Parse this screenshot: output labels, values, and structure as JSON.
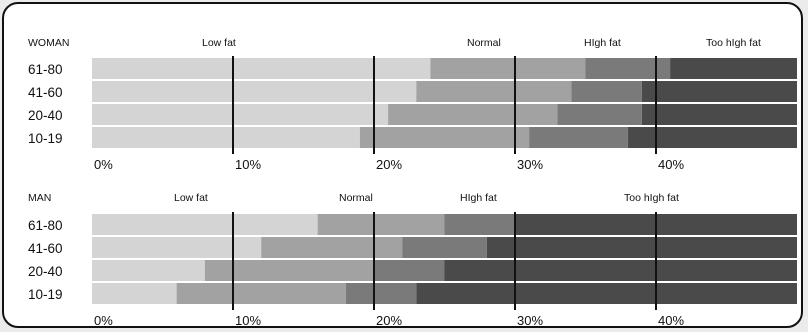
{
  "colors": {
    "background": "#ebebeb",
    "panel": "#ffffff",
    "low_fat": "#d4d4d4",
    "normal": "#a2a2a2",
    "high_fat": "#7a7a7a",
    "too_high_fat": "#4a4a4a",
    "divider": "#111111"
  },
  "chart_data": [
    {
      "type": "bar",
      "orientation": "horizontal",
      "stacked": true,
      "group_label": "WOMAN",
      "categories": [
        "61-80",
        "41-60",
        "20-40",
        "10-19"
      ],
      "zones": [
        "Low fat",
        "Normal",
        "High fat",
        "Too high fat"
      ],
      "boundaries": [
        [
          24,
          35,
          41,
          50
        ],
        [
          23,
          34,
          39,
          50
        ],
        [
          21,
          33,
          39,
          50
        ],
        [
          19,
          31,
          38,
          50
        ]
      ],
      "xlim": [
        0,
        50
      ],
      "xticks": [
        "0%",
        "10%",
        "20%",
        "30%",
        "40%"
      ],
      "gridlines": [
        10,
        20,
        30,
        40
      ]
    },
    {
      "type": "bar",
      "orientation": "horizontal",
      "stacked": true,
      "group_label": "MAN",
      "categories": [
        "61-80",
        "41-60",
        "20-40",
        "10-19"
      ],
      "zones": [
        "Low fat",
        "Normal",
        "High fat",
        "Too high fat"
      ],
      "boundaries": [
        [
          16,
          25,
          30,
          50
        ],
        [
          12,
          22,
          28,
          50
        ],
        [
          8,
          20,
          25,
          50
        ],
        [
          6,
          18,
          23,
          50
        ]
      ],
      "xlim": [
        0,
        50
      ],
      "xticks": [
        "0%",
        "10%",
        "20%",
        "30%",
        "40%"
      ],
      "gridlines": [
        10,
        20,
        30,
        40
      ]
    }
  ]
}
